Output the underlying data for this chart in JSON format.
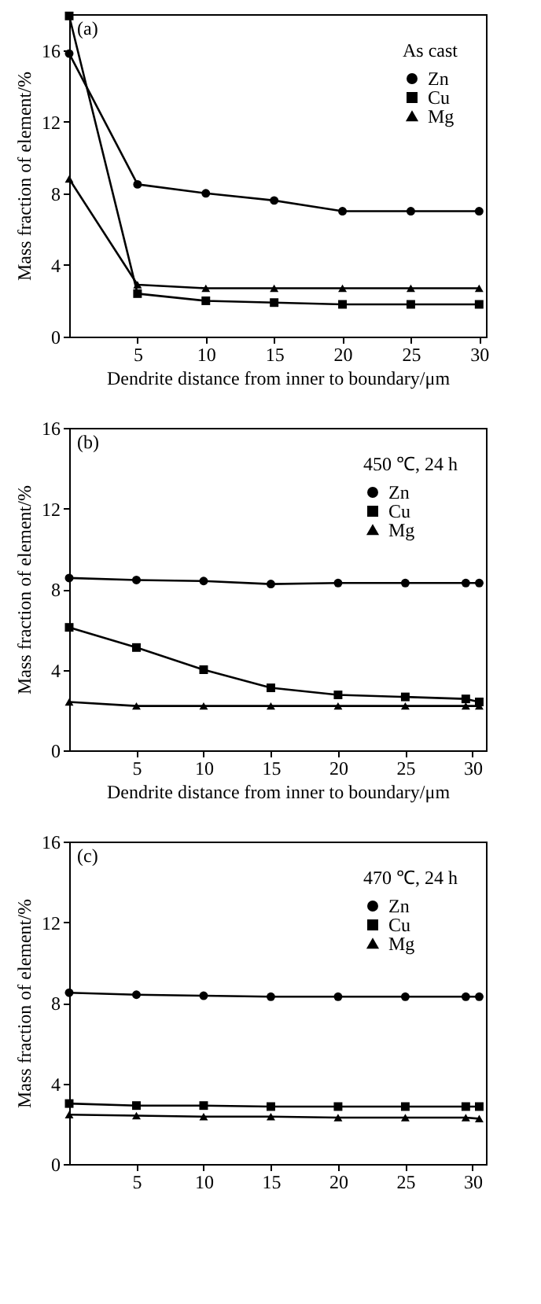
{
  "chart_data": [
    {
      "type": "line",
      "xlabel": "Dendrite distance from inner to boundary/μm",
      "ylabel": "Mass fraction of element/%",
      "legend_title": "As cast",
      "annotations": [
        "(a)"
      ],
      "legend": "top right",
      "grid": false,
      "xlim": [
        0,
        30.5
      ],
      "ylim": [
        0,
        18
      ],
      "xticks": [
        5,
        10,
        15,
        20,
        25,
        30
      ],
      "yticks": [
        0,
        4,
        8,
        12,
        16
      ],
      "x": [
        0,
        5,
        10,
        15,
        20,
        25,
        30
      ],
      "series": [
        {
          "name": "Zn",
          "color": "#000000",
          "marker": "circle",
          "values": [
            15.8,
            8.5,
            8.0,
            7.6,
            7.0,
            7.0,
            7.0
          ]
        },
        {
          "name": "Cu",
          "color": "#000000",
          "marker": "square",
          "values": [
            17.9,
            2.4,
            2.0,
            1.9,
            1.8,
            1.8,
            1.8
          ]
        },
        {
          "name": "Mg",
          "color": "#000000",
          "marker": "triangle",
          "values": [
            8.8,
            2.9,
            2.7,
            2.7,
            2.7,
            2.7,
            2.7
          ]
        }
      ]
    },
    {
      "type": "line",
      "xlabel": "Dendrite distance from inner to boundary/μm",
      "ylabel": "Mass fraction of element/%",
      "legend_title": "450 ℃, 24 h",
      "annotations": [
        "(b)"
      ],
      "legend": "top right",
      "grid": false,
      "xlim": [
        0,
        31
      ],
      "ylim": [
        0,
        16
      ],
      "xticks": [
        5,
        10,
        15,
        20,
        25,
        30
      ],
      "yticks": [
        0,
        4,
        8,
        12,
        16
      ],
      "x": [
        0,
        5,
        10,
        15,
        20,
        25,
        29.5,
        30.5
      ],
      "series": [
        {
          "name": "Zn",
          "color": "#000000",
          "marker": "circle",
          "values": [
            8.55,
            8.45,
            8.4,
            8.25,
            8.3,
            8.3,
            8.3,
            8.3
          ]
        },
        {
          "name": "Cu",
          "color": "#000000",
          "marker": "square",
          "values": [
            6.1,
            5.1,
            4.0,
            3.1,
            2.75,
            2.65,
            2.55,
            2.4
          ]
        },
        {
          "name": "Mg",
          "color": "#000000",
          "marker": "triangle",
          "values": [
            2.4,
            2.2,
            2.2,
            2.2,
            2.2,
            2.2,
            2.2,
            2.2
          ]
        }
      ]
    },
    {
      "type": "line",
      "ylabel": "Mass fraction of element/%",
      "legend_title": "470 ℃, 24 h",
      "annotations": [
        "(c)"
      ],
      "legend": "top right",
      "grid": false,
      "xlim": [
        0,
        31
      ],
      "ylim": [
        0,
        16
      ],
      "xticks": [
        5,
        10,
        15,
        20,
        25,
        30
      ],
      "yticks": [
        0,
        4,
        8,
        12,
        16
      ],
      "x": [
        0,
        5,
        10,
        15,
        20,
        25,
        29.5,
        30.5
      ],
      "series": [
        {
          "name": "Zn",
          "color": "#000000",
          "marker": "circle",
          "values": [
            8.5,
            8.4,
            8.35,
            8.3,
            8.3,
            8.3,
            8.3,
            8.3
          ]
        },
        {
          "name": "Cu",
          "color": "#000000",
          "marker": "square",
          "values": [
            3.0,
            2.9,
            2.9,
            2.85,
            2.85,
            2.85,
            2.85,
            2.85
          ]
        },
        {
          "name": "Mg",
          "color": "#000000",
          "marker": "triangle",
          "values": [
            2.45,
            2.4,
            2.35,
            2.35,
            2.3,
            2.3,
            2.3,
            2.25
          ]
        }
      ]
    }
  ]
}
